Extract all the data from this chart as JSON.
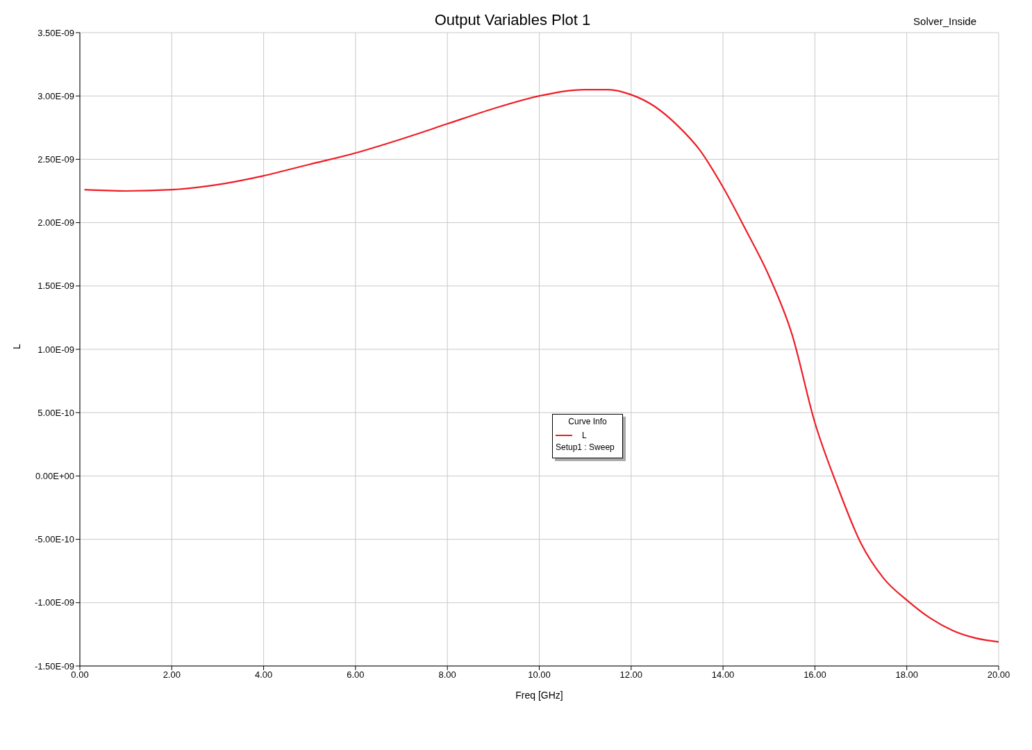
{
  "chart_data": {
    "type": "line",
    "title": "Output Variables Plot 1",
    "xlabel": "Freq [GHz]",
    "ylabel": "L",
    "legend_title": "Curve Info",
    "annotations": [
      "Solver_Inside",
      "Setup1 : Sweep"
    ],
    "x": [
      0.1,
      1,
      2,
      3,
      4,
      5,
      6,
      7,
      8,
      9,
      10,
      11,
      11.5,
      12,
      12.5,
      13,
      13.5,
      14,
      14.5,
      15,
      15.5,
      16,
      16.5,
      17,
      17.5,
      18,
      18.5,
      19,
      19.5,
      20
    ],
    "series": [
      {
        "name": "L",
        "color": "#ee1c25",
        "values": [
          2.26e-09,
          2.25e-09,
          2.26e-09,
          2.3e-09,
          2.37e-09,
          2.46e-09,
          2.55e-09,
          2.66e-09,
          2.78e-09,
          2.9e-09,
          3e-09,
          3.05e-09,
          3.05e-09,
          3.01e-09,
          2.92e-09,
          2.77e-09,
          2.57e-09,
          2.28e-09,
          1.94e-09,
          1.58e-09,
          1.12e-09,
          4.2e-10,
          -9e-11,
          -5.3e-10,
          -8.1e-10,
          -9.8e-10,
          -1.12e-09,
          -1.22e-09,
          -1.28e-09,
          -1.31e-09
        ]
      }
    ],
    "xlim": [
      0,
      20
    ],
    "ylim": [
      -1.5e-09,
      3.5e-09
    ],
    "xticks": [
      {
        "value": 0,
        "label": "0.00"
      },
      {
        "value": 2,
        "label": "2.00"
      },
      {
        "value": 4,
        "label": "4.00"
      },
      {
        "value": 6,
        "label": "6.00"
      },
      {
        "value": 8,
        "label": "8.00"
      },
      {
        "value": 10,
        "label": "10.00"
      },
      {
        "value": 12,
        "label": "12.00"
      },
      {
        "value": 14,
        "label": "14.00"
      },
      {
        "value": 16,
        "label": "16.00"
      },
      {
        "value": 18,
        "label": "18.00"
      },
      {
        "value": 20,
        "label": "20.00"
      }
    ],
    "yticks": [
      {
        "value": -1.5e-09,
        "label": "-1.50E-09"
      },
      {
        "value": -1e-09,
        "label": "-1.00E-09"
      },
      {
        "value": -5e-10,
        "label": "-5.00E-10"
      },
      {
        "value": 0,
        "label": "0.00E+00"
      },
      {
        "value": 5e-10,
        "label": "5.00E-10"
      },
      {
        "value": 1e-09,
        "label": "1.00E-09"
      },
      {
        "value": 1.5e-09,
        "label": "1.50E-09"
      },
      {
        "value": 2e-09,
        "label": "2.00E-09"
      },
      {
        "value": 2.5e-09,
        "label": "2.50E-09"
      },
      {
        "value": 3e-09,
        "label": "3.00E-09"
      },
      {
        "value": 3.5e-09,
        "label": "3.50E-09"
      }
    ],
    "grid": true,
    "legend": "center",
    "marker": "none",
    "line_style": "solid"
  }
}
